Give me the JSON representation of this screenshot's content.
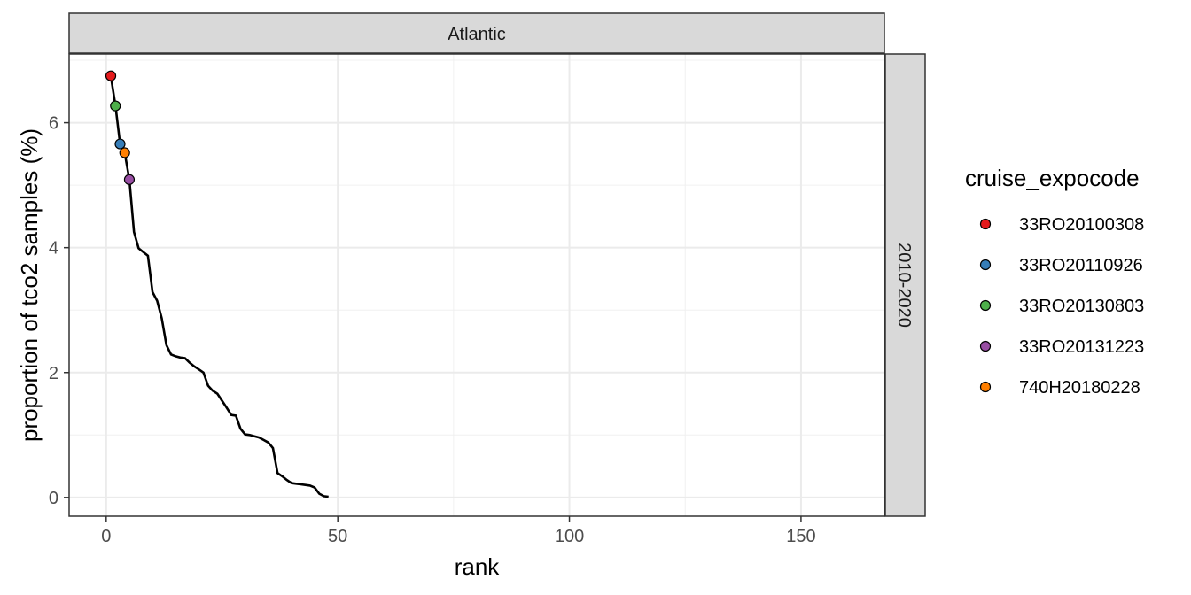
{
  "chart_data": {
    "type": "line",
    "facet_column": "Atlantic",
    "facet_row": "2010-2020",
    "xlabel": "rank",
    "ylabel": "proportion of tco2 samples (%)",
    "xlim": [
      -8,
      168
    ],
    "ylim": [
      -0.3,
      7.1
    ],
    "x_ticks": [
      0,
      50,
      100,
      150
    ],
    "y_ticks": [
      0,
      2,
      4,
      6
    ],
    "grid": true,
    "line": {
      "color": "#000000",
      "x": [
        1,
        2,
        3,
        4,
        5,
        6,
        7,
        8,
        9,
        10,
        11,
        12,
        13,
        14,
        15,
        16,
        17,
        18,
        19,
        20,
        21,
        22,
        23,
        24,
        25,
        26,
        27,
        28,
        29,
        30,
        31,
        32,
        33,
        34,
        35,
        36,
        37,
        38,
        39,
        40,
        41,
        42,
        43,
        44,
        45,
        46,
        47,
        48
      ],
      "y": [
        6.75,
        6.27,
        5.66,
        5.52,
        5.09,
        4.25,
        3.99,
        3.93,
        3.87,
        3.29,
        3.15,
        2.87,
        2.44,
        2.29,
        2.26,
        2.24,
        2.23,
        2.16,
        2.1,
        2.05,
        2.0,
        1.79,
        1.71,
        1.66,
        1.55,
        1.44,
        1.32,
        1.31,
        1.1,
        1.01,
        1.0,
        0.98,
        0.96,
        0.92,
        0.88,
        0.79,
        0.39,
        0.34,
        0.28,
        0.23,
        0.22,
        0.21,
        0.2,
        0.19,
        0.16,
        0.06,
        0.02,
        0.01
      ]
    },
    "highlight_points": [
      {
        "x": 1,
        "y": 6.75,
        "color": "#E41A1C"
      },
      {
        "x": 2,
        "y": 6.27,
        "color": "#4DAF4A"
      },
      {
        "x": 3,
        "y": 5.66,
        "color": "#377EB8"
      },
      {
        "x": 4,
        "y": 5.52,
        "color": "#FF7F00"
      },
      {
        "x": 5,
        "y": 5.09,
        "color": "#984EA3"
      }
    ],
    "legend": {
      "title": "cruise_expocode",
      "placement": "right",
      "entries": [
        {
          "label": "33RO20100308",
          "color": "#E41A1C"
        },
        {
          "label": "33RO20110926",
          "color": "#377EB8"
        },
        {
          "label": "33RO20130803",
          "color": "#4DAF4A"
        },
        {
          "label": "33RO20131223",
          "color": "#984EA3"
        },
        {
          "label": "740H20180228",
          "color": "#FF7F00"
        }
      ]
    }
  }
}
